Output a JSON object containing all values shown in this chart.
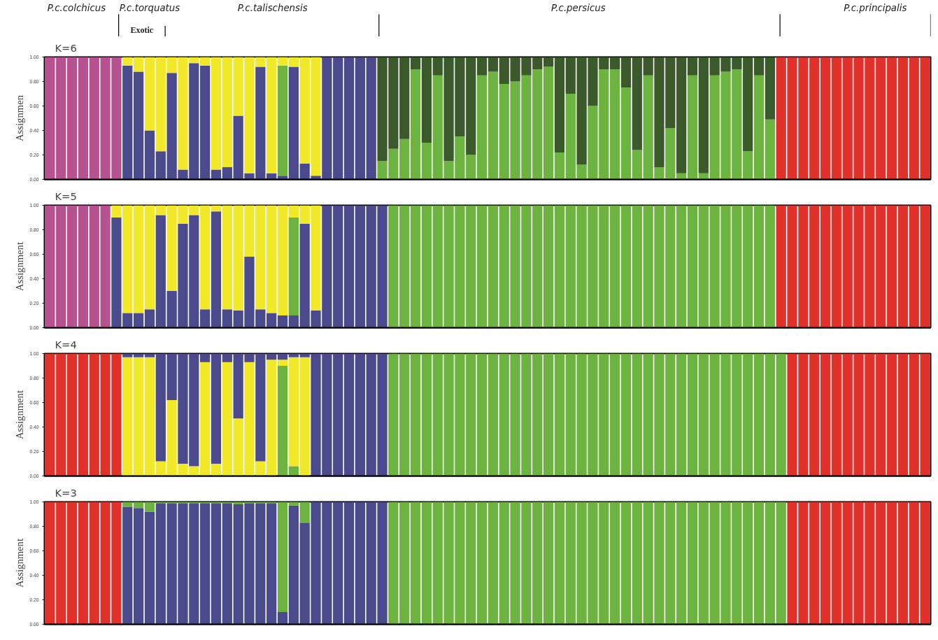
{
  "chart_data": [
    {
      "type": "bar",
      "stacked": true,
      "title": "K=6",
      "ylabel": "Assignmen",
      "ylim": [
        0,
        1
      ],
      "yticks": [
        {
          "value": 0,
          "label": "0.00"
        },
        {
          "value": 0.2,
          "label": "0.20"
        },
        {
          "value": 0.4,
          "label": "0.40"
        },
        {
          "value": 0.6,
          "label": "0.60"
        },
        {
          "value": 0.8,
          "label": "0.80"
        },
        {
          "value": 1,
          "label": "1.00"
        }
      ],
      "tick_labels": "y",
      "grid": false,
      "annotations": [
        "P.c.colchicus",
        "P.c.torquatus",
        "P.c.talischensis",
        "P.c.persicus",
        "P.c.principalis",
        "Exotic"
      ],
      "categories": [
        null,
        null,
        null,
        null,
        null,
        null,
        null,
        null,
        null,
        null,
        null,
        null,
        null,
        null,
        null,
        null,
        null,
        null,
        null,
        null,
        null,
        null,
        null,
        null,
        null,
        null,
        null,
        null,
        null,
        null,
        null,
        null,
        null,
        null,
        null,
        null,
        null,
        null,
        null,
        null,
        null,
        null,
        null,
        null,
        null,
        null,
        null,
        null,
        null,
        null,
        null,
        null,
        null,
        null,
        null,
        null,
        null,
        null,
        null,
        null,
        null,
        null,
        null,
        null,
        null,
        null,
        null,
        null,
        null,
        null,
        null,
        null,
        null,
        null,
        null,
        null,
        null,
        null,
        null,
        null
      ],
      "series": [
        {
          "color": "#4b4a8c",
          "values": [
            0,
            0,
            0,
            0,
            0,
            0,
            0,
            0.93,
            0.88,
            0.4,
            0.23,
            0.87,
            0.08,
            0.95,
            0.93,
            0.08,
            0.1,
            0.52,
            0.05,
            0.92,
            0.05,
            0.03,
            0.92,
            0.13,
            0.03,
            1,
            1,
            1,
            1,
            1,
            0,
            0,
            0,
            0,
            0,
            0,
            0,
            0,
            0,
            0,
            0,
            0,
            0,
            0,
            0,
            0,
            0,
            0,
            0,
            0,
            0,
            0,
            0,
            0,
            0,
            0,
            0,
            0,
            0,
            0,
            0,
            0,
            0,
            0,
            0,
            0,
            0,
            0,
            0,
            0,
            0,
            0,
            0,
            0,
            0,
            0,
            0,
            0,
            0,
            0
          ]
        },
        {
          "color": "#6db33f",
          "values": [
            0,
            0,
            0,
            0,
            0,
            0,
            0,
            0,
            0,
            0,
            0,
            0,
            0,
            0,
            0,
            0,
            0,
            0,
            0,
            0,
            0,
            0.9,
            0,
            0,
            0,
            0,
            0,
            0,
            0,
            0,
            0.15,
            0.25,
            0.33,
            0.9,
            0.3,
            0.85,
            0.15,
            0.35,
            0.2,
            0.85,
            0.88,
            0.78,
            0.8,
            0.85,
            0.9,
            0.92,
            0.22,
            0.7,
            0.12,
            0.6,
            0.9,
            0.9,
            0.75,
            0.24,
            0.85,
            0.1,
            0.42,
            0.05,
            0.85,
            0.05,
            0.85,
            0.88,
            0.9,
            0.23,
            0.85,
            0.49,
            0,
            0,
            0,
            0,
            0,
            0,
            0,
            0,
            0,
            0,
            0,
            0,
            0,
            0
          ]
        },
        {
          "color": "#f2e82a",
          "values": [
            0,
            0,
            0,
            0,
            0,
            0,
            0,
            0.07,
            0.12,
            0.6,
            0.77,
            0.13,
            0.92,
            0.05,
            0.07,
            0.92,
            0.9,
            0.48,
            0.95,
            0.08,
            0.95,
            0.07,
            0.08,
            0.87,
            0.97,
            0,
            0,
            0,
            0,
            0,
            0,
            0,
            0,
            0,
            0,
            0,
            0,
            0,
            0,
            0,
            0,
            0,
            0,
            0,
            0,
            0,
            0,
            0,
            0,
            0,
            0,
            0,
            0,
            0,
            0,
            0,
            0,
            0,
            0,
            0,
            0,
            0,
            0,
            0,
            0,
            0,
            0,
            0,
            0,
            0,
            0,
            0,
            0,
            0,
            0,
            0,
            0,
            0,
            0,
            0
          ]
        },
        {
          "color": "#b5528f",
          "values": [
            1,
            1,
            1,
            1,
            1,
            1,
            1,
            0,
            0,
            0,
            0,
            0,
            0,
            0,
            0,
            0,
            0,
            0,
            0,
            0,
            0,
            0,
            0,
            0,
            0,
            0,
            0,
            0,
            0,
            0,
            0,
            0,
            0,
            0,
            0,
            0,
            0,
            0,
            0,
            0,
            0,
            0,
            0,
            0,
            0,
            0,
            0,
            0,
            0,
            0,
            0,
            0,
            0,
            0,
            0,
            0,
            0,
            0,
            0,
            0,
            0,
            0,
            0,
            0,
            0,
            0,
            0,
            0,
            0,
            0,
            0,
            0,
            0,
            0,
            0,
            0,
            0,
            0,
            0,
            0
          ]
        },
        {
          "color": "#3b5a2c",
          "values": [
            0,
            0,
            0,
            0,
            0,
            0,
            0,
            0,
            0,
            0,
            0,
            0,
            0,
            0,
            0,
            0,
            0,
            0,
            0,
            0,
            0,
            0,
            0,
            0,
            0,
            0,
            0,
            0,
            0,
            0,
            0.85,
            0.75,
            0.67,
            0.1,
            0.7,
            0.15,
            0.85,
            0.65,
            0.8,
            0.15,
            0.12,
            0.22,
            0.2,
            0.15,
            0.1,
            0.08,
            0.78,
            0.3,
            0.88,
            0.4,
            0.1,
            0.1,
            0.25,
            0.76,
            0.15,
            0.9,
            0.58,
            0.95,
            0.15,
            0.95,
            0.15,
            0.12,
            0.1,
            0.77,
            0.15,
            0.51,
            0,
            0,
            0,
            0,
            0,
            0,
            0,
            0,
            0,
            0,
            0,
            0,
            0,
            0
          ]
        },
        {
          "color": "#e0312b",
          "values": [
            0,
            0,
            0,
            0,
            0,
            0,
            0,
            0,
            0,
            0,
            0,
            0,
            0,
            0,
            0,
            0,
            0,
            0,
            0,
            0,
            0,
            0,
            0,
            0,
            0,
            0,
            0,
            0,
            0,
            0,
            0,
            0,
            0,
            0,
            0,
            0,
            0,
            0,
            0,
            0,
            0,
            0,
            0,
            0,
            0,
            0,
            0,
            0,
            0,
            0,
            0,
            0,
            0,
            0,
            0,
            0,
            0,
            0,
            0,
            0,
            0,
            0,
            0,
            0,
            0,
            0,
            1,
            1,
            1,
            1,
            1,
            1,
            1,
            1,
            1,
            1,
            1,
            1,
            1,
            1
          ]
        }
      ]
    },
    {
      "type": "bar",
      "stacked": true,
      "title": "K=5",
      "ylabel": "Assignment",
      "ylim": [
        0,
        1
      ],
      "yticks": [
        {
          "value": 0,
          "label": "0.00"
        },
        {
          "value": 0.2,
          "label": "0.20"
        },
        {
          "value": 0.4,
          "label": "0.40"
        },
        {
          "value": 0.6,
          "label": "0.60"
        },
        {
          "value": 0.8,
          "label": "0.80"
        },
        {
          "value": 1,
          "label": "1.00"
        }
      ],
      "tick_labels": "y",
      "grid": false,
      "categories": [
        null,
        null,
        null,
        null,
        null,
        null,
        null,
        null,
        null,
        null,
        null,
        null,
        null,
        null,
        null,
        null,
        null,
        null,
        null,
        null,
        null,
        null,
        null,
        null,
        null,
        null,
        null,
        null,
        null,
        null,
        null,
        null,
        null,
        null,
        null,
        null,
        null,
        null,
        null,
        null,
        null,
        null,
        null,
        null,
        null,
        null,
        null,
        null,
        null,
        null,
        null,
        null,
        null,
        null,
        null,
        null,
        null,
        null,
        null,
        null,
        null,
        null,
        null,
        null,
        null,
        null,
        null,
        null,
        null,
        null,
        null,
        null,
        null,
        null,
        null,
        null,
        null,
        null,
        null,
        null
      ],
      "series": [
        {
          "color": "#4b4a8c",
          "values": [
            0,
            0,
            0,
            0,
            0,
            0,
            0.9,
            0.12,
            0.12,
            0.15,
            0.92,
            0.3,
            0.85,
            0.92,
            0.15,
            0.95,
            0.15,
            0.14,
            0.58,
            0.15,
            0.12,
            0.1,
            0.1,
            0.85,
            0.14,
            1,
            1,
            1,
            1,
            1,
            1,
            0,
            0,
            0,
            0,
            0,
            0,
            0,
            0,
            0,
            0,
            0,
            0,
            0,
            0,
            0,
            0,
            0,
            0,
            0,
            0,
            0,
            0,
            0,
            0,
            0,
            0,
            0,
            0,
            0,
            0,
            0,
            0,
            0,
            0,
            0,
            0,
            0,
            0,
            0,
            0,
            0,
            0,
            0,
            0,
            0,
            0,
            0,
            0,
            0
          ]
        },
        {
          "color": "#6db33f",
          "values": [
            0,
            0,
            0,
            0,
            0,
            0,
            0,
            0,
            0,
            0,
            0,
            0,
            0,
            0,
            0,
            0,
            0,
            0,
            0,
            0,
            0,
            0,
            0.8,
            0,
            0,
            0,
            0,
            0,
            0,
            0,
            0,
            1,
            1,
            1,
            1,
            1,
            1,
            1,
            1,
            1,
            1,
            1,
            1,
            1,
            1,
            1,
            1,
            1,
            1,
            1,
            1,
            1,
            1,
            1,
            1,
            1,
            1,
            1,
            1,
            1,
            1,
            1,
            1,
            1,
            1,
            1,
            0,
            0,
            0,
            0,
            0,
            0,
            0,
            0,
            0,
            0,
            0,
            0,
            0,
            0
          ]
        },
        {
          "color": "#f2e82a",
          "values": [
            0,
            0,
            0,
            0,
            0,
            0,
            0.1,
            0.88,
            0.88,
            0.85,
            0.08,
            0.7,
            0.15,
            0.08,
            0.85,
            0.05,
            0.85,
            0.86,
            0.42,
            0.85,
            0.88,
            0.9,
            0.1,
            0.15,
            0.86,
            0,
            0,
            0,
            0,
            0,
            0,
            0,
            0,
            0,
            0,
            0,
            0,
            0,
            0,
            0,
            0,
            0,
            0,
            0,
            0,
            0,
            0,
            0,
            0,
            0,
            0,
            0,
            0,
            0,
            0,
            0,
            0,
            0,
            0,
            0,
            0,
            0,
            0,
            0,
            0,
            0,
            0,
            0,
            0,
            0,
            0,
            0,
            0,
            0,
            0,
            0,
            0,
            0,
            0,
            0
          ]
        },
        {
          "color": "#b5528f",
          "values": [
            1,
            1,
            1,
            1,
            1,
            1,
            0,
            0,
            0,
            0,
            0,
            0,
            0,
            0,
            0,
            0,
            0,
            0,
            0,
            0,
            0,
            0,
            0,
            0,
            0,
            0,
            0,
            0,
            0,
            0,
            0,
            0,
            0,
            0,
            0,
            0,
            0,
            0,
            0,
            0,
            0,
            0,
            0,
            0,
            0,
            0,
            0,
            0,
            0,
            0,
            0,
            0,
            0,
            0,
            0,
            0,
            0,
            0,
            0,
            0,
            0,
            0,
            0,
            0,
            0,
            0,
            0,
            0,
            0,
            0,
            0,
            0,
            0,
            0,
            0,
            0,
            0,
            0,
            0,
            0
          ]
        },
        {
          "color": "#e0312b",
          "values": [
            0,
            0,
            0,
            0,
            0,
            0,
            0,
            0,
            0,
            0,
            0,
            0,
            0,
            0,
            0,
            0,
            0,
            0,
            0,
            0,
            0,
            0,
            0,
            0,
            0,
            0,
            0,
            0,
            0,
            0,
            0,
            0,
            0,
            0,
            0,
            0,
            0,
            0,
            0,
            0,
            0,
            0,
            0,
            0,
            0,
            0,
            0,
            0,
            0,
            0,
            0,
            0,
            0,
            0,
            0,
            0,
            0,
            0,
            0,
            0,
            0,
            0,
            0,
            0,
            0,
            0,
            1,
            1,
            1,
            1,
            1,
            1,
            1,
            1,
            1,
            1,
            1,
            1,
            1,
            1
          ]
        }
      ]
    },
    {
      "type": "bar",
      "stacked": true,
      "title": "K=4",
      "ylabel": "Assignment",
      "ylim": [
        0,
        1
      ],
      "yticks": [
        {
          "value": 0,
          "label": "0.00"
        },
        {
          "value": 0.2,
          "label": "0.20"
        },
        {
          "value": 0.4,
          "label": "0.40"
        },
        {
          "value": 0.6,
          "label": "0.60"
        },
        {
          "value": 0.8,
          "label": "0.80"
        },
        {
          "value": 1,
          "label": "1.00"
        }
      ],
      "tick_labels": "y",
      "grid": false,
      "categories": [
        null,
        null,
        null,
        null,
        null,
        null,
        null,
        null,
        null,
        null,
        null,
        null,
        null,
        null,
        null,
        null,
        null,
        null,
        null,
        null,
        null,
        null,
        null,
        null,
        null,
        null,
        null,
        null,
        null,
        null,
        null,
        null,
        null,
        null,
        null,
        null,
        null,
        null,
        null,
        null,
        null,
        null,
        null,
        null,
        null,
        null,
        null,
        null,
        null,
        null,
        null,
        null,
        null,
        null,
        null,
        null,
        null,
        null,
        null,
        null,
        null,
        null,
        null,
        null,
        null,
        null,
        null,
        null,
        null,
        null,
        null,
        null,
        null,
        null,
        null,
        null,
        null,
        null,
        null,
        null
      ],
      "series": [
        {
          "color": "#6db33f",
          "values": [
            0,
            0,
            0,
            0,
            0,
            0,
            0,
            0,
            0,
            0,
            0,
            0,
            0,
            0,
            0,
            0,
            0,
            0,
            0,
            0,
            0,
            0.9,
            0.08,
            0,
            0,
            0,
            0,
            0,
            0,
            0,
            0,
            1,
            1,
            1,
            1,
            1,
            1,
            1,
            1,
            1,
            1,
            1,
            1,
            1,
            1,
            1,
            1,
            1,
            1,
            1,
            1,
            1,
            1,
            1,
            1,
            1,
            1,
            1,
            1,
            1,
            1,
            1,
            1,
            1,
            1,
            1,
            1,
            0,
            0,
            0,
            0,
            0,
            0,
            0,
            0,
            0,
            0,
            0,
            0,
            0
          ]
        },
        {
          "color": "#f2e82a",
          "values": [
            0,
            0,
            0,
            0,
            0,
            0,
            0,
            0.97,
            0.97,
            0.97,
            0.12,
            0.62,
            0.1,
            0.08,
            0.93,
            0.1,
            0.93,
            0.47,
            0.93,
            0.12,
            0.95,
            0.05,
            0.89,
            0.97,
            0,
            0,
            0,
            0,
            0,
            0,
            0,
            0,
            0,
            0,
            0,
            0,
            0,
            0,
            0,
            0,
            0,
            0,
            0,
            0,
            0,
            0,
            0,
            0,
            0,
            0,
            0,
            0,
            0,
            0,
            0,
            0,
            0,
            0,
            0,
            0,
            0,
            0,
            0,
            0,
            0,
            0,
            0,
            0,
            0,
            0,
            0,
            0,
            0,
            0,
            0,
            0,
            0,
            0,
            0,
            0
          ]
        },
        {
          "color": "#4b4a8c",
          "values": [
            0,
            0,
            0,
            0,
            0,
            0,
            0,
            0.03,
            0.03,
            0.03,
            0.88,
            0.38,
            0.9,
            0.92,
            0.07,
            0.9,
            0.07,
            0.53,
            0.07,
            0.88,
            0.05,
            0.05,
            0.03,
            0.03,
            1,
            1,
            1,
            1,
            1,
            1,
            1,
            0,
            0,
            0,
            0,
            0,
            0,
            0,
            0,
            0,
            0,
            0,
            0,
            0,
            0,
            0,
            0,
            0,
            0,
            0,
            0,
            0,
            0,
            0,
            0,
            0,
            0,
            0,
            0,
            0,
            0,
            0,
            0,
            0,
            0,
            0,
            0,
            0,
            0,
            0,
            0,
            0,
            0,
            0,
            0,
            0,
            0,
            0,
            0,
            0
          ]
        },
        {
          "color": "#e0312b",
          "values": [
            1,
            1,
            1,
            1,
            1,
            1,
            1,
            0,
            0,
            0,
            0,
            0,
            0,
            0,
            0,
            0,
            0,
            0,
            0,
            0,
            0,
            0,
            0,
            0,
            0,
            0,
            0,
            0,
            0,
            0,
            0,
            0,
            0,
            0,
            0,
            0,
            0,
            0,
            0,
            0,
            0,
            0,
            0,
            0,
            0,
            0,
            0,
            0,
            0,
            0,
            0,
            0,
            0,
            0,
            0,
            0,
            0,
            0,
            0,
            0,
            0,
            0,
            0,
            0,
            0,
            0,
            0,
            1,
            1,
            1,
            1,
            1,
            1,
            1,
            1,
            1,
            1,
            1,
            1,
            1
          ]
        }
      ]
    },
    {
      "type": "bar",
      "stacked": true,
      "title": "K=3",
      "ylabel": "Assignment",
      "ylim": [
        0,
        1
      ],
      "yticks": [
        {
          "value": 0,
          "label": "0.00"
        },
        {
          "value": 0.2,
          "label": "0.20"
        },
        {
          "value": 0.4,
          "label": "0.40"
        },
        {
          "value": 0.6,
          "label": "0.60"
        },
        {
          "value": 0.8,
          "label": "0.80"
        },
        {
          "value": 1,
          "label": "1.00"
        }
      ],
      "tick_labels": "y",
      "grid": false,
      "categories": [
        null,
        null,
        null,
        null,
        null,
        null,
        null,
        null,
        null,
        null,
        null,
        null,
        null,
        null,
        null,
        null,
        null,
        null,
        null,
        null,
        null,
        null,
        null,
        null,
        null,
        null,
        null,
        null,
        null,
        null,
        null,
        null,
        null,
        null,
        null,
        null,
        null,
        null,
        null,
        null,
        null,
        null,
        null,
        null,
        null,
        null,
        null,
        null,
        null,
        null,
        null,
        null,
        null,
        null,
        null,
        null,
        null,
        null,
        null,
        null,
        null,
        null,
        null,
        null,
        null,
        null,
        null,
        null,
        null,
        null,
        null,
        null,
        null,
        null,
        null,
        null,
        null,
        null,
        null,
        null
      ],
      "series": [
        {
          "color": "#4b4a8c",
          "values": [
            0,
            0,
            0,
            0,
            0,
            0,
            0,
            0.96,
            0.95,
            0.92,
            0.99,
            0.99,
            0.99,
            0.99,
            0.99,
            0.99,
            0.99,
            0.98,
            0.99,
            0.99,
            0.99,
            0.1,
            0.97,
            0.83,
            1,
            1,
            1,
            1,
            1,
            1,
            1,
            0,
            0,
            0,
            0,
            0,
            0,
            0,
            0,
            0,
            0,
            0,
            0,
            0,
            0,
            0,
            0,
            0,
            0,
            0,
            0,
            0,
            0,
            0,
            0,
            0,
            0,
            0,
            0,
            0,
            0,
            0,
            0,
            0,
            0,
            0,
            0,
            0,
            0,
            0,
            0,
            0,
            0,
            0,
            0,
            0,
            0,
            0,
            0,
            0
          ]
        },
        {
          "color": "#6db33f",
          "values": [
            0,
            0,
            0,
            0,
            0,
            0,
            0,
            0.04,
            0.05,
            0.08,
            0.01,
            0.01,
            0.01,
            0.01,
            0.01,
            0.01,
            0.01,
            0.02,
            0.01,
            0.01,
            0.01,
            0.9,
            0.03,
            0.17,
            0,
            0,
            0,
            0,
            0,
            0,
            0,
            1,
            1,
            1,
            1,
            1,
            1,
            1,
            1,
            1,
            1,
            1,
            1,
            1,
            1,
            1,
            1,
            1,
            1,
            1,
            1,
            1,
            1,
            1,
            1,
            1,
            1,
            1,
            1,
            1,
            1,
            1,
            1,
            1,
            1,
            1,
            1,
            0,
            0,
            0,
            0,
            0,
            0,
            0,
            0,
            0,
            0,
            0,
            0,
            0
          ]
        },
        {
          "color": "#e0312b",
          "values": [
            1,
            1,
            1,
            1,
            1,
            1,
            1,
            0,
            0,
            0,
            0,
            0,
            0,
            0,
            0,
            0,
            0,
            0,
            0,
            0,
            0,
            0,
            0,
            0,
            0,
            0,
            0,
            0,
            0,
            0,
            0,
            0,
            0,
            0,
            0,
            0,
            0,
            0,
            0,
            0,
            0,
            0,
            0,
            0,
            0,
            0,
            0,
            0,
            0,
            0,
            0,
            0,
            0,
            0,
            0,
            0,
            0,
            0,
            0,
            0,
            0,
            0,
            0,
            0,
            0,
            0,
            0,
            1,
            1,
            1,
            1,
            1,
            1,
            1,
            1,
            1,
            1,
            1,
            1,
            1
          ]
        }
      ]
    }
  ]
}
